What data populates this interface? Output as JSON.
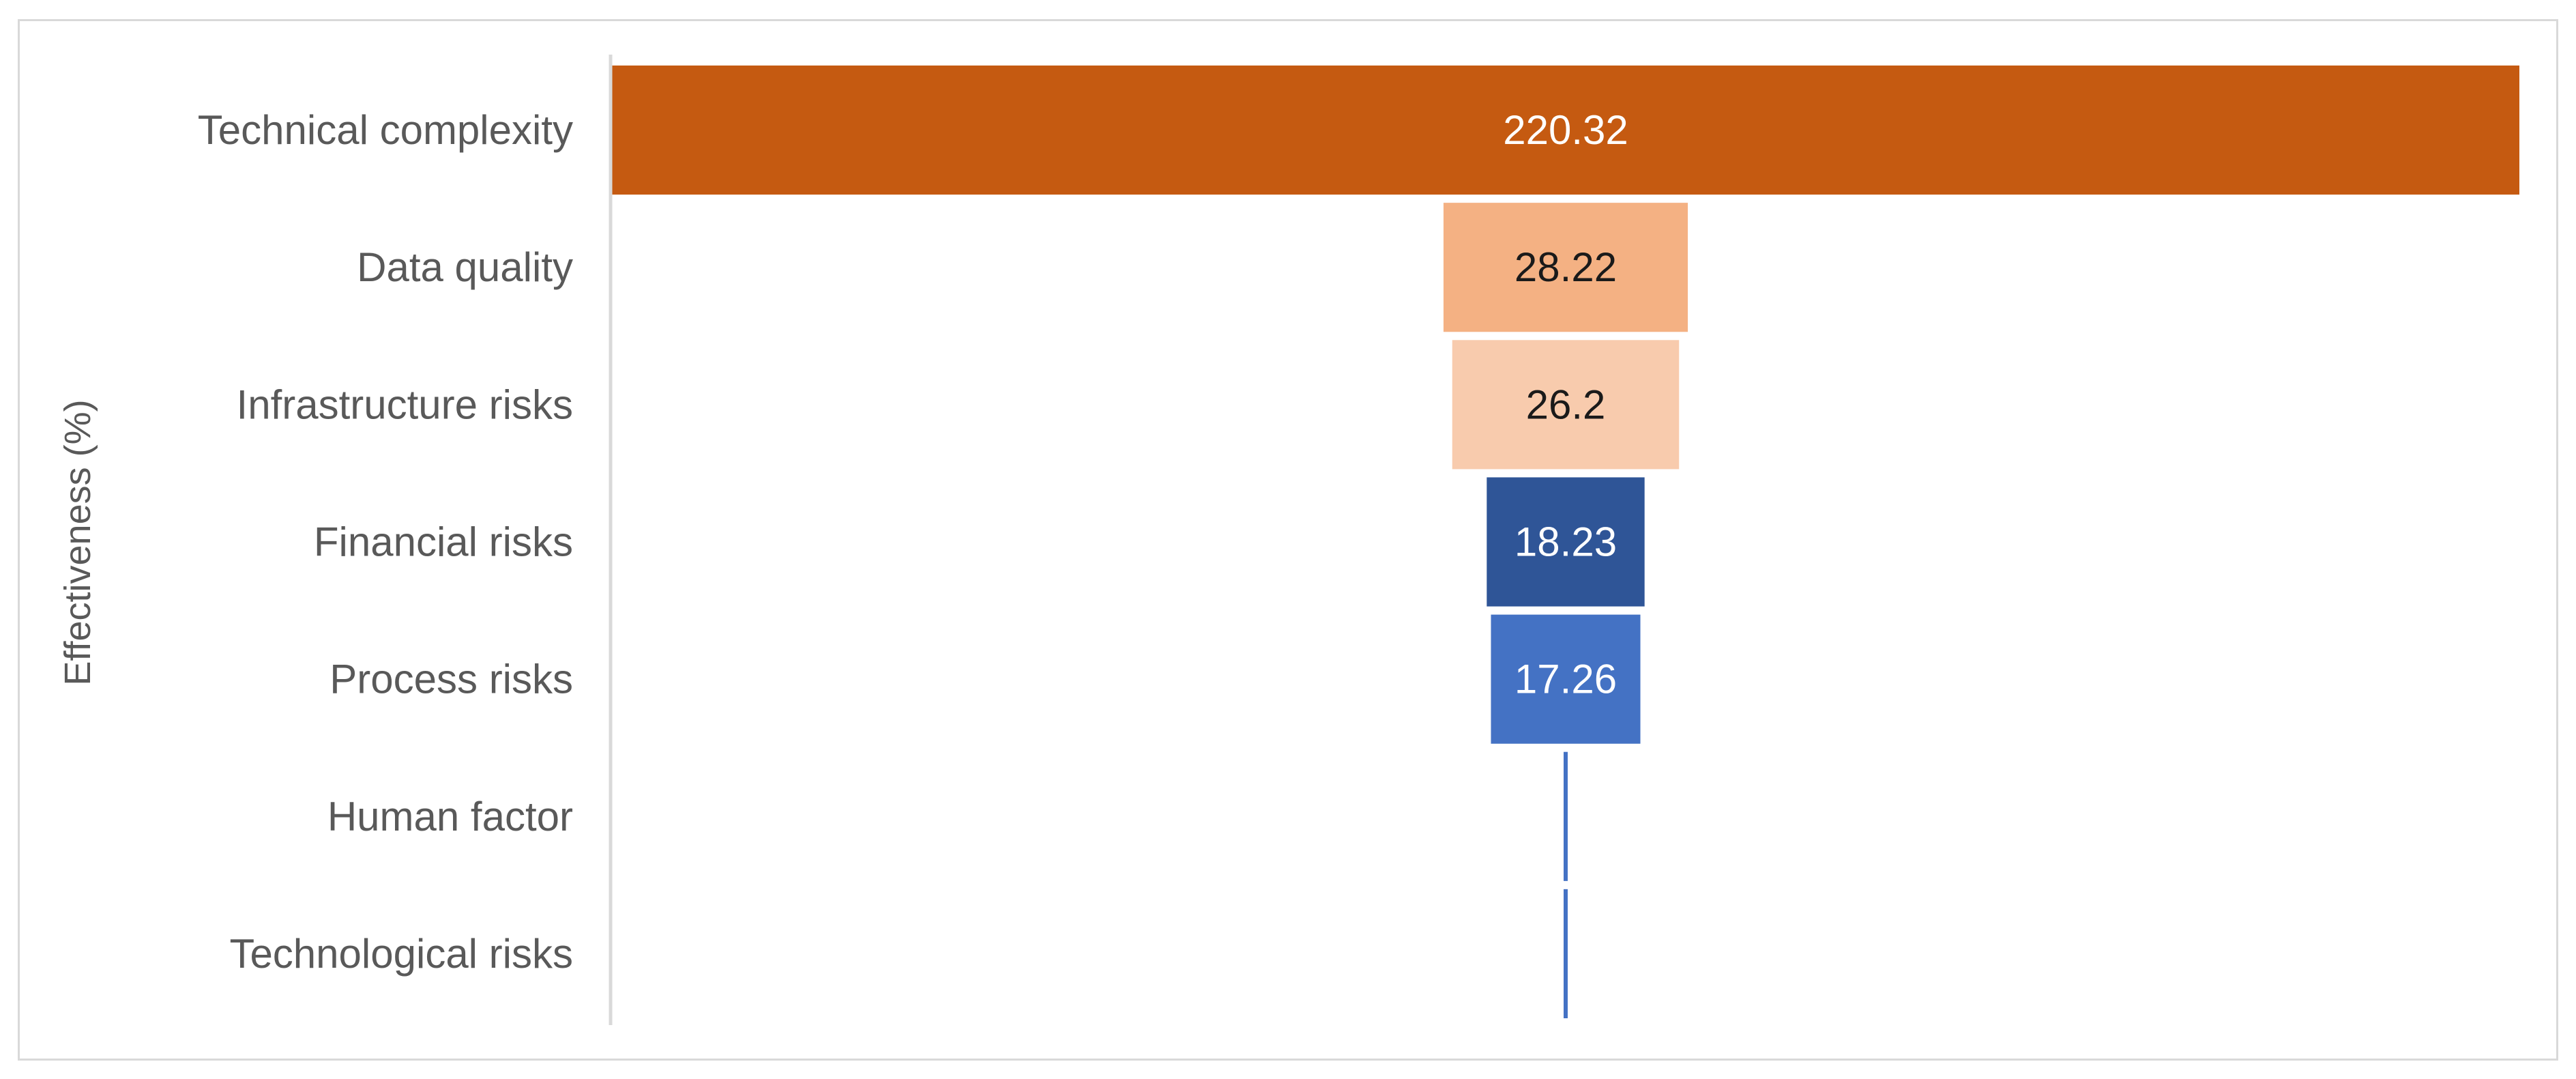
{
  "chart_data": {
    "type": "bar",
    "subtype": "funnel",
    "orientation": "horizontal",
    "ylabel": "Effectiveness (%)",
    "categories": [
      "Technical complexity",
      "Data quality",
      "Infrastructure risks",
      "Financial risks",
      "Process risks",
      "Human factor",
      "Technological risks"
    ],
    "values": [
      220.32,
      28.22,
      26.2,
      18.23,
      17.26,
      0,
      0
    ],
    "data_labels": [
      "220.32",
      "28.22",
      "26.2",
      "18.23",
      "17.26",
      "",
      ""
    ],
    "colors": [
      "#C55A11",
      "#F4B183",
      "#F8CBAD",
      "#2F5597",
      "#4472C4",
      "#4472C4",
      "#4472C4"
    ],
    "label_colors": [
      "#ffffff",
      "#1a1a1a",
      "#1a1a1a",
      "#ffffff",
      "#ffffff",
      "#ffffff",
      "#ffffff"
    ],
    "xlim": [
      0,
      220.32
    ],
    "grid": false,
    "legend": "none"
  }
}
